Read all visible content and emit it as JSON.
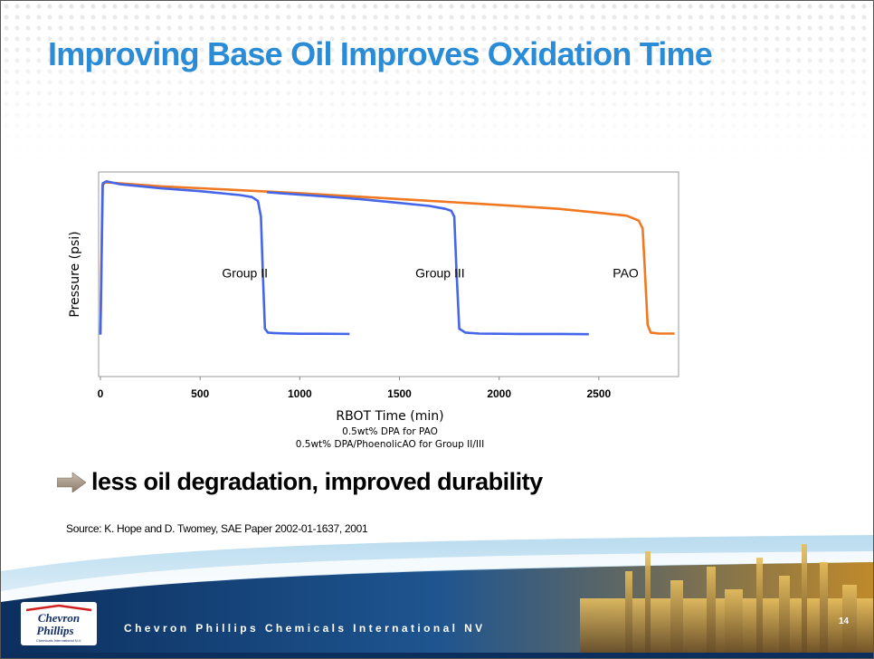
{
  "slide": {
    "title": "Improving Base Oil Improves Oxidation Time",
    "bullet": "less oil degradation,  improved durability",
    "source": "Source:  K. Hope and D. Twomey, SAE Paper 2002-01-1637,  2001",
    "footer": "Chevron Phillips Chemicals International NV",
    "page_number": "14",
    "logo": {
      "line1": "Chevron",
      "line2": "Phillips",
      "tagline": "Chemicals International N.V."
    }
  },
  "chart_data": {
    "type": "line",
    "xlabel": "RBOT Time (min)",
    "ylabel": "Pressure (psi)",
    "notes": [
      "0.5wt% DPA for PAO",
      "0.5wt% DPA/PhoenolicAO for Group II/III"
    ],
    "xlim": [
      0,
      2900
    ],
    "ylim": [
      0,
      100
    ],
    "x_ticks": [
      0,
      500,
      1000,
      1500,
      2000,
      2500
    ],
    "y_ticks_shown": false,
    "grid": false,
    "annotations": [
      {
        "text": "Group II",
        "x": 610,
        "y": 49
      },
      {
        "text": "Group III",
        "x": 1580,
        "y": 49
      },
      {
        "text": "PAO",
        "x": 2570,
        "y": 49
      }
    ],
    "series": [
      {
        "name": "Group II",
        "color": "#4466e8",
        "x": [
          0,
          12,
          30,
          100,
          300,
          500,
          700,
          760,
          790,
          805,
          815,
          825,
          840,
          870,
          920,
          1000,
          1100,
          1250
        ],
        "y": [
          20,
          97,
          98,
          96.5,
          94.5,
          93,
          91,
          90,
          88,
          80,
          50,
          23,
          21,
          20.8,
          20.6,
          20.4,
          20.4,
          20.3
        ]
      },
      {
        "name": "Group III",
        "color": "#4466e8",
        "x": [
          835,
          900,
          1100,
          1300,
          1500,
          1650,
          1730,
          1760,
          1775,
          1785,
          1800,
          1830,
          1900,
          2100,
          2300,
          2450
        ],
        "y": [
          92.5,
          92,
          90.5,
          89,
          87,
          85.5,
          84,
          83,
          80,
          55,
          23,
          21,
          20.5,
          20.3,
          20.3,
          20.2
        ]
      },
      {
        "name": "PAO",
        "color": "#f07820",
        "x": [
          0,
          10,
          25,
          100,
          300,
          600,
          1000,
          1500,
          2000,
          2300,
          2500,
          2640,
          2700,
          2720,
          2730,
          2745,
          2760,
          2800,
          2880
        ],
        "y": [
          20,
          96,
          97.5,
          97,
          95.5,
          94,
          92,
          89,
          86,
          84,
          82,
          80.5,
          78,
          74,
          55,
          25,
          21,
          20.5,
          20.5
        ]
      }
    ]
  }
}
